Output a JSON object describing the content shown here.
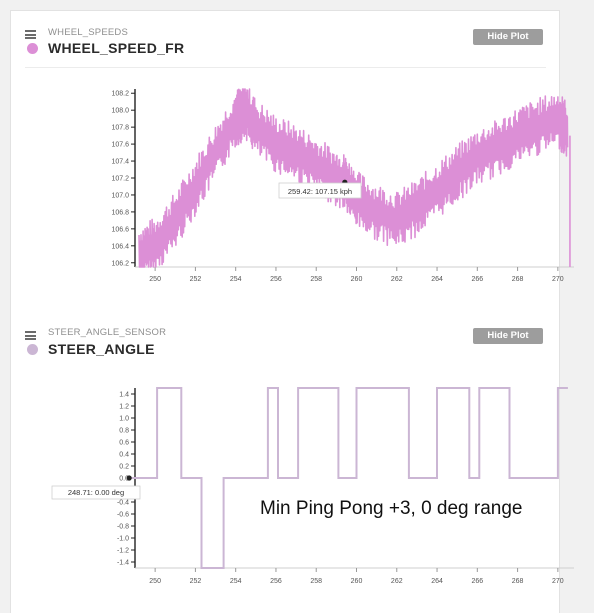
{
  "colors": {
    "wheel_speed": "#dc8fd6",
    "steer_angle": "#cbb6d4",
    "button_bg": "#9d9d9d"
  },
  "plot1": {
    "message_name": "WHEEL_SPEEDS",
    "signal_name": "WHEEL_SPEED_FR",
    "hide_button": "Hide Plot",
    "menu_icon": "hamburger-menu-icon",
    "tooltip": "259.42: 107.15 kph"
  },
  "plot2": {
    "message_name": "STEER_ANGLE_SENSOR",
    "signal_name": "STEER_ANGLE",
    "hide_button": "Hide Plot",
    "menu_icon": "hamburger-menu-icon",
    "tooltip": "248.71: 0.00 deg"
  },
  "annotation": "Min Ping Pong +3, 0 deg range",
  "chart_data": [
    {
      "type": "line",
      "series": [
        {
          "x": [
            249.2,
            250,
            251,
            252,
            253,
            254,
            254.5,
            255,
            256,
            257,
            258,
            259,
            259.42,
            260,
            261,
            262,
            263,
            264,
            265,
            266,
            267,
            268,
            269,
            270,
            270.5
          ],
          "y": [
            106.3,
            106.4,
            106.7,
            107.1,
            107.5,
            107.9,
            108.0,
            107.8,
            107.6,
            107.5,
            107.35,
            107.2,
            107.15,
            106.95,
            106.8,
            106.7,
            106.85,
            107.05,
            107.25,
            107.45,
            107.55,
            107.7,
            107.8,
            107.9,
            107.75
          ]
        }
      ],
      "xlim": [
        249,
        271
      ],
      "ylim": [
        106.15,
        108.25
      ],
      "x_ticks": [
        "250",
        "252",
        "254",
        "256",
        "258",
        "260",
        "262",
        "264",
        "266",
        "268",
        "270"
      ],
      "y_ticks": [
        "108.2",
        "108.0",
        "107.8",
        "107.6",
        "107.4",
        "107.2",
        "107.0",
        "106.8",
        "106.6",
        "106.4",
        "106.2"
      ]
    },
    {
      "type": "line",
      "series": [
        {
          "x": [
            248.71,
            250.1,
            250.1,
            251.3,
            251.3,
            252.3,
            252.3,
            253.4,
            253.4,
            255.6,
            255.6,
            256.1,
            256.1,
            257.1,
            257.1,
            259.1,
            259.1,
            260.0,
            260.0,
            262.6,
            262.6,
            264.0,
            264.0,
            265.6,
            265.6,
            266.1,
            266.1,
            267.6,
            267.6,
            270.0,
            270.0,
            270.5
          ],
          "y": [
            0,
            0,
            1.5,
            1.5,
            0,
            0,
            -1.5,
            -1.5,
            0,
            0,
            1.5,
            1.5,
            0,
            0,
            1.5,
            1.5,
            0,
            0,
            1.5,
            1.5,
            0,
            0,
            1.5,
            1.5,
            0,
            0,
            1.5,
            1.5,
            0,
            0,
            1.5,
            1.5
          ]
        }
      ],
      "xlim": [
        249,
        271
      ],
      "ylim": [
        -1.5,
        1.5
      ],
      "x_ticks": [
        "250",
        "252",
        "254",
        "256",
        "258",
        "260",
        "262",
        "264",
        "266",
        "268",
        "270"
      ],
      "y_ticks": [
        "1.4",
        "1.2",
        "1.0",
        "0.8",
        "0.6",
        "0.4",
        "0.2",
        "0.0",
        "-0.2",
        "-0.4",
        "-0.6",
        "-0.8",
        "-1.0",
        "-1.2",
        "-1.4"
      ]
    }
  ]
}
